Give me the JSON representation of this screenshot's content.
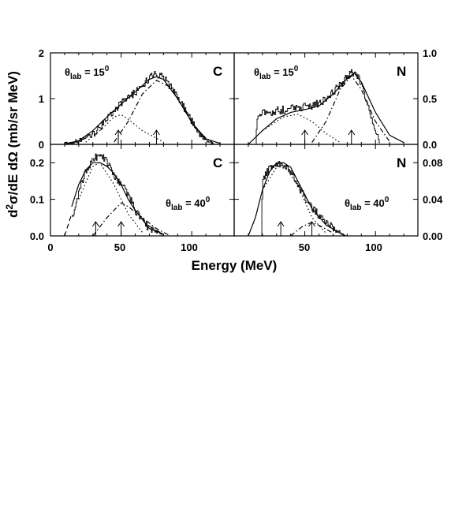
{
  "figure": {
    "xlabel": "Energy (MeV)",
    "ylabel_parts": {
      "d": "d",
      "sup": "2",
      "rest": "σ/dE dΩ (mb/sr MeV)"
    },
    "x_ticks": [
      "0",
      "50",
      "100"
    ]
  },
  "chart_data": [
    {
      "type": "line",
      "panel": "top-left",
      "element_label": "C",
      "angle_label": {
        "theta": "θ",
        "sub": "lab",
        "eq": " = 15",
        "sup": "0"
      },
      "xlim": [
        0,
        130
      ],
      "ylim": [
        0,
        2
      ],
      "y_ticks": [
        0,
        1,
        2
      ],
      "y_tick_side": "left",
      "arrows_x": [
        48,
        75
      ],
      "series": [
        {
          "style": "histogram",
          "points": [
            [
              10,
              0.02
            ],
            [
              20,
              0.08
            ],
            [
              30,
              0.22
            ],
            [
              40,
              0.55
            ],
            [
              50,
              0.9
            ],
            [
              60,
              1.15
            ],
            [
              70,
              1.45
            ],
            [
              75,
              1.55
            ],
            [
              80,
              1.45
            ],
            [
              90,
              1.05
            ],
            [
              100,
              0.5
            ],
            [
              105,
              0.25
            ],
            [
              110,
              0.08
            ],
            [
              115,
              0.02
            ]
          ]
        },
        {
          "style": "solid",
          "points": [
            [
              10,
              0.01
            ],
            [
              20,
              0.08
            ],
            [
              30,
              0.3
            ],
            [
              40,
              0.6
            ],
            [
              50,
              0.88
            ],
            [
              60,
              1.15
            ],
            [
              70,
              1.42
            ],
            [
              75,
              1.48
            ],
            [
              80,
              1.42
            ],
            [
              90,
              1.0
            ],
            [
              100,
              0.48
            ],
            [
              110,
              0.12
            ],
            [
              120,
              0.02
            ]
          ]
        },
        {
          "style": "dotted",
          "points": [
            [
              25,
              0.05
            ],
            [
              35,
              0.3
            ],
            [
              45,
              0.6
            ],
            [
              50,
              0.65
            ],
            [
              55,
              0.55
            ],
            [
              65,
              0.3
            ],
            [
              80,
              0.05
            ]
          ]
        },
        {
          "style": "dash-dot",
          "points": [
            [
              45,
              0.05
            ],
            [
              55,
              0.5
            ],
            [
              65,
              1.1
            ],
            [
              75,
              1.4
            ],
            [
              85,
              1.25
            ],
            [
              95,
              0.75
            ],
            [
              105,
              0.25
            ],
            [
              115,
              0.03
            ]
          ]
        }
      ]
    },
    {
      "type": "line",
      "panel": "top-right",
      "element_label": "N",
      "angle_label": {
        "theta": "θ",
        "sub": "lab",
        "eq": " = 15",
        "sup": "0"
      },
      "xlim": [
        0,
        130
      ],
      "ylim": [
        0,
        1
      ],
      "y_ticks": [
        0,
        0.5,
        1
      ],
      "y_tick_labels": [
        "0.0",
        "0.5",
        "1.0"
      ],
      "y_tick_side": "right",
      "arrows_x": [
        50,
        83
      ],
      "series": [
        {
          "style": "histogram",
          "points": [
            [
              15,
              0.0
            ],
            [
              16,
              0.32
            ],
            [
              25,
              0.35
            ],
            [
              35,
              0.38
            ],
            [
              45,
              0.4
            ],
            [
              55,
              0.42
            ],
            [
              65,
              0.5
            ],
            [
              75,
              0.65
            ],
            [
              80,
              0.75
            ],
            [
              85,
              0.8
            ],
            [
              90,
              0.65
            ],
            [
              95,
              0.4
            ],
            [
              100,
              0.15
            ],
            [
              103,
              0.02
            ]
          ]
        },
        {
          "style": "solid",
          "points": [
            [
              10,
              0.0
            ],
            [
              20,
              0.15
            ],
            [
              30,
              0.28
            ],
            [
              40,
              0.35
            ],
            [
              50,
              0.38
            ],
            [
              60,
              0.42
            ],
            [
              70,
              0.55
            ],
            [
              80,
              0.72
            ],
            [
              85,
              0.78
            ],
            [
              90,
              0.68
            ],
            [
              100,
              0.35
            ],
            [
              110,
              0.1
            ],
            [
              120,
              0.02
            ]
          ]
        },
        {
          "style": "dotted",
          "points": [
            [
              20,
              0.15
            ],
            [
              35,
              0.3
            ],
            [
              45,
              0.33
            ],
            [
              55,
              0.25
            ],
            [
              65,
              0.12
            ],
            [
              75,
              0.02
            ]
          ]
        },
        {
          "style": "dash-dot",
          "points": [
            [
              55,
              0.02
            ],
            [
              65,
              0.25
            ],
            [
              75,
              0.6
            ],
            [
              83,
              0.75
            ],
            [
              90,
              0.6
            ],
            [
              100,
              0.25
            ],
            [
              110,
              0.03
            ]
          ]
        }
      ]
    },
    {
      "type": "line",
      "panel": "bottom-left",
      "element_label": "C",
      "angle_label": {
        "theta": "θ",
        "sub": "lab",
        "eq": " = 40",
        "sup": "0"
      },
      "xlim": [
        0,
        130
      ],
      "ylim": [
        0,
        0.25
      ],
      "y_ticks": [
        0,
        0.1,
        0.2
      ],
      "y_tick_labels": [
        "0.0",
        "0.1",
        "0.2"
      ],
      "y_tick_side": "left",
      "arrows_x": [
        32,
        50
      ],
      "series": [
        {
          "style": "histogram",
          "points": [
            [
              15,
              0.05
            ],
            [
              20,
              0.12
            ],
            [
              25,
              0.18
            ],
            [
              30,
              0.21
            ],
            [
              35,
              0.22
            ],
            [
              40,
              0.2
            ],
            [
              45,
              0.16
            ],
            [
              50,
              0.14
            ],
            [
              55,
              0.11
            ],
            [
              60,
              0.07
            ],
            [
              65,
              0.04
            ],
            [
              70,
              0.02
            ],
            [
              75,
              0.01
            ],
            [
              80,
              0.0
            ]
          ]
        },
        {
          "style": "solid",
          "points": [
            [
              15,
              0.08
            ],
            [
              20,
              0.14
            ],
            [
              25,
              0.18
            ],
            [
              30,
              0.2
            ],
            [
              35,
              0.2
            ],
            [
              40,
              0.19
            ],
            [
              45,
              0.17
            ],
            [
              50,
              0.14
            ],
            [
              55,
              0.1
            ],
            [
              60,
              0.07
            ],
            [
              70,
              0.02
            ],
            [
              80,
              0.005
            ]
          ]
        },
        {
          "style": "dashed",
          "points": [
            [
              10,
              0.0
            ],
            [
              15,
              0.06
            ]
          ]
        },
        {
          "style": "dotted",
          "points": [
            [
              20,
              0.1
            ],
            [
              30,
              0.19
            ],
            [
              35,
              0.2
            ],
            [
              45,
              0.14
            ],
            [
              55,
              0.06
            ],
            [
              65,
              0.01
            ]
          ]
        },
        {
          "style": "dash-dot",
          "points": [
            [
              30,
              0.0
            ],
            [
              40,
              0.05
            ],
            [
              50,
              0.09
            ],
            [
              55,
              0.08
            ],
            [
              65,
              0.05
            ],
            [
              75,
              0.02
            ],
            [
              85,
              0.0
            ]
          ]
        }
      ]
    },
    {
      "type": "line",
      "panel": "bottom-right",
      "element_label": "N",
      "angle_label": {
        "theta": "θ",
        "sub": "lab",
        "eq": " = 40",
        "sup": "0"
      },
      "xlim": [
        0,
        130
      ],
      "ylim": [
        0,
        0.1
      ],
      "y_ticks": [
        0,
        0.04,
        0.08
      ],
      "y_tick_labels": [
        "0.00",
        "0.04",
        "0.08"
      ],
      "y_tick_side": "right",
      "arrows_x": [
        33,
        55
      ],
      "series": [
        {
          "style": "histogram",
          "points": [
            [
              19,
              0.0
            ],
            [
              20,
              0.06
            ],
            [
              25,
              0.075
            ],
            [
              30,
              0.08
            ],
            [
              35,
              0.078
            ],
            [
              40,
              0.07
            ],
            [
              45,
              0.055
            ],
            [
              50,
              0.04
            ],
            [
              55,
              0.03
            ],
            [
              60,
              0.022
            ],
            [
              65,
              0.015
            ],
            [
              70,
              0.008
            ],
            [
              75,
              0.003
            ],
            [
              80,
              0.0
            ]
          ]
        },
        {
          "style": "solid",
          "points": [
            [
              10,
              0.0
            ],
            [
              15,
              0.02
            ],
            [
              20,
              0.05
            ],
            [
              25,
              0.07
            ],
            [
              30,
              0.08
            ],
            [
              35,
              0.08
            ],
            [
              40,
              0.075
            ],
            [
              45,
              0.06
            ],
            [
              50,
              0.045
            ],
            [
              55,
              0.03
            ],
            [
              65,
              0.012
            ],
            [
              75,
              0.003
            ]
          ]
        },
        {
          "style": "dotted",
          "points": [
            [
              20,
              0.05
            ],
            [
              30,
              0.075
            ],
            [
              35,
              0.078
            ],
            [
              45,
              0.055
            ],
            [
              55,
              0.02
            ],
            [
              65,
              0.003
            ]
          ]
        },
        {
          "style": "dash-dot",
          "points": [
            [
              40,
              0.0
            ],
            [
              48,
              0.01
            ],
            [
              55,
              0.015
            ],
            [
              62,
              0.01
            ],
            [
              70,
              0.003
            ]
          ]
        }
      ]
    }
  ]
}
